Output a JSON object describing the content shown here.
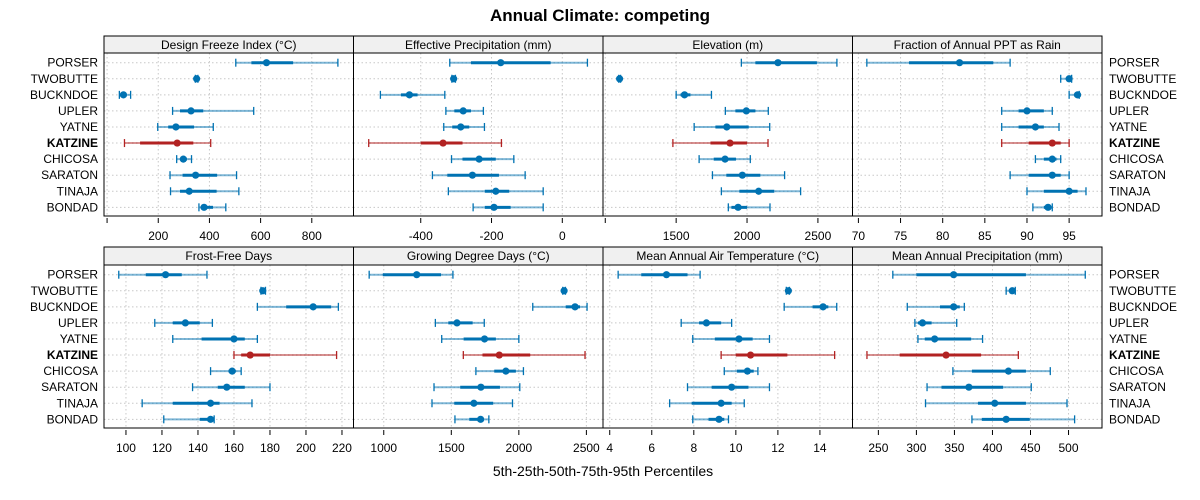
{
  "chart_data": {
    "type": "scatter",
    "title": "Annual Climate: competing",
    "xlabel": "5th-25th-50th-75th-95th Percentiles",
    "ylabel": "",
    "grid": true,
    "interval_order": [
      "p5",
      "p25",
      "p50",
      "p75",
      "p95"
    ],
    "sites": [
      "PORSER",
      "TWOBUTTE",
      "BUCKNDOE",
      "UPLER",
      "YATNE",
      "KATZINE",
      "CHICOSA",
      "SARATON",
      "TINAJA",
      "BONDAD"
    ],
    "highlight_site": "KATZINE",
    "colors": {
      "normal": "#0072B2",
      "highlight": "#B22222",
      "grid": "#c8c8c8",
      "strip": "#f0f0f0"
    },
    "panels": [
      {
        "title": "Design Freeze Index (°C)",
        "xlim": [
          -12,
          963
        ],
        "ticks": [
          0,
          200,
          400,
          600,
          800
        ],
        "tick_labels": [
          "",
          "200",
          "400",
          "600",
          "800"
        ],
        "values": {
          "PORSER": [
            503,
            564,
            623,
            727,
            902
          ],
          "TWOBUTTE": [
            345,
            348,
            350,
            352,
            355
          ],
          "BUCKNDOE": [
            48,
            58,
            64,
            72,
            92
          ],
          "UPLER": [
            256,
            285,
            328,
            376,
            573
          ],
          "YATNE": [
            198,
            239,
            269,
            340,
            415
          ],
          "KATZINE": [
            68,
            129,
            274,
            337,
            405
          ],
          "CHICOSA": [
            272,
            285,
            298,
            312,
            330
          ],
          "SARATON": [
            246,
            295,
            346,
            430,
            506
          ],
          "TINAJA": [
            248,
            285,
            321,
            428,
            515
          ],
          "BONDAD": [
            359,
            370,
            379,
            414,
            464
          ]
        }
      },
      {
        "title": "Effective Precipitation (mm)",
        "xlim": [
          -590,
          115
        ],
        "ticks": [
          -400,
          -200,
          0
        ],
        "tick_labels": [
          "-400",
          "-200",
          "0"
        ],
        "values": {
          "PORSER": [
            -318,
            -258,
            -174,
            -33,
            71
          ],
          "TWOBUTTE": [
            -312,
            -310,
            -307,
            -305,
            -302
          ],
          "BUCKNDOE": [
            -514,
            -456,
            -432,
            -409,
            -332
          ],
          "UPLER": [
            -329,
            -305,
            -280,
            -258,
            -223
          ],
          "YATNE": [
            -335,
            -311,
            -287,
            -263,
            -220
          ],
          "KATZINE": [
            -547,
            -400,
            -337,
            -282,
            -172
          ],
          "CHICOSA": [
            -313,
            -282,
            -235,
            -188,
            -137
          ],
          "SARATON": [
            -367,
            -325,
            -254,
            -179,
            -105
          ],
          "TINAJA": [
            -322,
            -219,
            -188,
            -150,
            -54
          ],
          "BONDAD": [
            -252,
            -219,
            -193,
            -146,
            -54
          ]
        }
      },
      {
        "title": "Elevation (m)",
        "xlim": [
          984,
          2744
        ],
        "ticks": [
          1000,
          1500,
          2000,
          2500
        ],
        "tick_labels": [
          "",
          "1500",
          "2000",
          "2500"
        ],
        "values": {
          "PORSER": [
            1960,
            2059,
            2218,
            2493,
            2634
          ],
          "TWOBUTTE": [
            1095,
            1098,
            1101,
            1104,
            1108
          ],
          "BUCKNDOE": [
            1500,
            1531,
            1559,
            1601,
            1749
          ],
          "UPLER": [
            1847,
            1918,
            1995,
            2059,
            2150
          ],
          "YATNE": [
            1627,
            1777,
            1857,
            2012,
            2160
          ],
          "KATZINE": [
            1477,
            1742,
            1880,
            2000,
            2148
          ],
          "CHICOSA": [
            1662,
            1765,
            1845,
            1922,
            2023
          ],
          "SARATON": [
            1756,
            1854,
            1967,
            2094,
            2265
          ],
          "TINAJA": [
            1819,
            1946,
            2082,
            2192,
            2378
          ],
          "BONDAD": [
            1868,
            1890,
            1937,
            2000,
            2162
          ]
        }
      },
      {
        "title": "Fraction of Annual PPT as Rain",
        "xlim": [
          69.3,
          98.9
        ],
        "ticks": [
          70,
          75,
          80,
          85,
          90,
          95
        ],
        "tick_labels": [
          "70",
          "75",
          "80",
          "85",
          "90",
          "95"
        ],
        "values": {
          "PORSER": [
            71,
            76,
            82,
            86,
            88
          ],
          "TWOBUTTE": [
            94,
            94.8,
            95,
            95.2,
            95.3
          ],
          "BUCKNDOE": [
            95,
            95.6,
            96,
            96.1,
            96.2
          ],
          "UPLER": [
            87,
            89,
            90,
            92,
            93
          ],
          "YATNE": [
            87,
            89,
            91,
            92,
            93.8
          ],
          "KATZINE": [
            87,
            90.2,
            93,
            94,
            95
          ],
          "CHICOSA": [
            91,
            92,
            93,
            93.5,
            94
          ],
          "SARATON": [
            88,
            90.2,
            93,
            94,
            95
          ],
          "TINAJA": [
            90,
            92,
            95,
            96,
            97
          ],
          "BONDAD": [
            90.7,
            92,
            92.5,
            92.8,
            93
          ]
        }
      },
      {
        "title": "Frost-Free Days",
        "xlim": [
          87.8,
          226.4
        ],
        "ticks": [
          100,
          120,
          140,
          160,
          180,
          200,
          220
        ],
        "tick_labels": [
          "100",
          "120",
          "140",
          "160",
          "180",
          "200",
          "220"
        ],
        "values": {
          "PORSER": [
            96,
            111,
            122,
            131,
            145
          ],
          "TWOBUTTE": [
            175,
            176,
            176,
            177,
            177.5
          ],
          "BUCKNDOE": [
            173,
            189,
            204,
            214,
            218
          ],
          "UPLER": [
            116,
            126,
            133,
            141,
            148
          ],
          "YATNE": [
            126,
            142,
            160,
            166,
            173
          ],
          "KATZINE": [
            160,
            164,
            169,
            180,
            217
          ],
          "CHICOSA": [
            147,
            157,
            159,
            161,
            164
          ],
          "SARATON": [
            137,
            151,
            156,
            166,
            180
          ],
          "TINAJA": [
            109,
            126,
            147,
            152,
            170
          ],
          "BONDAD": [
            121,
            141,
            147,
            148,
            149
          ]
        }
      },
      {
        "title": "Growing Degree Days (°C)",
        "xlim": [
          776,
          2623
        ],
        "ticks": [
          1000,
          1500,
          2000,
          2500
        ],
        "tick_labels": [
          "1000",
          "1500",
          "2000",
          "2500"
        ],
        "values": {
          "PORSER": [
            892,
            993,
            1244,
            1424,
            1512
          ],
          "TWOBUTTE": [
            2325,
            2330,
            2335,
            2340,
            2345
          ],
          "BUCKNDOE": [
            2103,
            2347,
            2416,
            2453,
            2505
          ],
          "UPLER": [
            1382,
            1478,
            1542,
            1658,
            1744
          ],
          "YATNE": [
            1429,
            1591,
            1746,
            1830,
            2000
          ],
          "KATZINE": [
            1589,
            1731,
            1855,
            2084,
            2490
          ],
          "CHICOSA": [
            1682,
            1818,
            1904,
            1978,
            2034
          ],
          "SARATON": [
            1372,
            1566,
            1719,
            1860,
            2007
          ],
          "TINAJA": [
            1357,
            1522,
            1667,
            1810,
            1953
          ],
          "BONDAD": [
            1527,
            1633,
            1717,
            1731,
            1778
          ]
        }
      },
      {
        "title": "Mean Annual Air Temperature (°C)",
        "xlim": [
          3.68,
          15.55
        ],
        "ticks": [
          4,
          6,
          8,
          10,
          12,
          14
        ],
        "tick_labels": [
          "4",
          "6",
          "8",
          "10",
          "12",
          "14"
        ],
        "values": {
          "PORSER": [
            4.4,
            5.5,
            6.7,
            7.7,
            8.3
          ],
          "TWOBUTTE": [
            12.4,
            12.45,
            12.5,
            12.52,
            12.55
          ],
          "BUCKNDOE": [
            12.3,
            13.65,
            14.15,
            14.4,
            14.8
          ],
          "UPLER": [
            7.4,
            8.25,
            8.6,
            9.3,
            9.8
          ],
          "YATNE": [
            7.95,
            9.0,
            10.15,
            10.8,
            11.6
          ],
          "KATZINE": [
            9.3,
            10.0,
            10.7,
            12.45,
            14.7
          ],
          "CHICOSA": [
            9.45,
            10.05,
            10.55,
            10.85,
            11.05
          ],
          "SARATON": [
            7.7,
            8.85,
            9.8,
            10.6,
            11.6
          ],
          "TINAJA": [
            6.85,
            7.9,
            9.3,
            9.8,
            10.4
          ],
          "BONDAD": [
            7.95,
            8.7,
            9.2,
            9.45,
            9.65
          ]
        }
      },
      {
        "title": "Mean Annual Precipitation (mm)",
        "xlim": [
          216,
          544
        ],
        "ticks": [
          250,
          300,
          350,
          400,
          450,
          500
        ],
        "tick_labels": [
          "250",
          "300",
          "350",
          "400",
          "450",
          "500"
        ],
        "values": {
          "PORSER": [
            269,
            300,
            349,
            444,
            522
          ],
          "TWOBUTTE": [
            418,
            422,
            426,
            428,
            430
          ],
          "BUCKNDOE": [
            288,
            331,
            349,
            357,
            363
          ],
          "UPLER": [
            298,
            302,
            308,
            320,
            353
          ],
          "YATNE": [
            302,
            311,
            324,
            372,
            387
          ],
          "KATZINE": [
            235,
            278,
            339,
            385,
            434
          ],
          "CHICOSA": [
            348,
            373,
            421,
            444,
            476
          ],
          "SARATON": [
            314,
            333,
            369,
            414,
            451
          ],
          "TINAJA": [
            312,
            381,
            403,
            444,
            498
          ],
          "BONDAD": [
            373,
            386,
            418,
            449,
            508
          ]
        }
      }
    ]
  }
}
